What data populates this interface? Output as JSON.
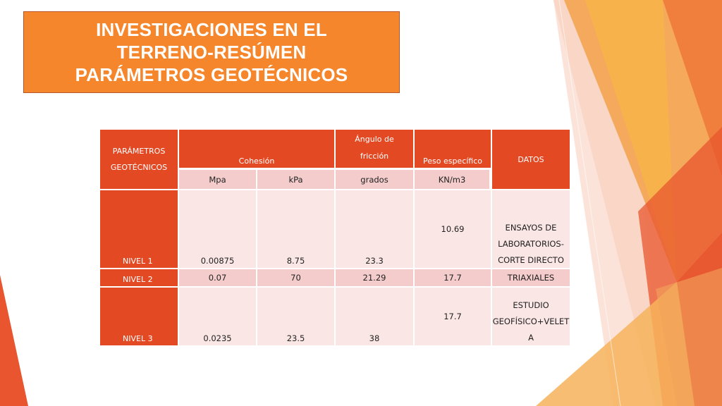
{
  "slide": {
    "title_lines": [
      "INVESTIGACIONES EN EL",
      "TERRENO-RESÚMEN",
      "PARÁMETROS GEOTÉCNICOS"
    ]
  },
  "table": {
    "header": {
      "parametros_l1": "PARÁMETROS",
      "parametros_l2": "GEOTÉCNICOS",
      "cohesion": "Cohesión",
      "angulo_l1": "Ángulo de",
      "angulo_l2": "fricción",
      "peso": "Peso específico",
      "datos": "DATOS"
    },
    "units": {
      "mpa": "Mpa",
      "kpa": "kPa",
      "grados": "grados",
      "kn": "KN/m3"
    },
    "rows": [
      {
        "label": "NIVEL 1",
        "mpa": "0.00875",
        "kpa": "8.75",
        "grados": "23.3",
        "peso": "10.69",
        "datos_lines": [
          "ENSAYOS DE",
          "LABORATORIOS-",
          "CORTE DIRECTO"
        ]
      },
      {
        "label": "NIVEL 2",
        "mpa": "0.07",
        "kpa": "70",
        "grados": "21.29",
        "peso": "17.7",
        "datos_lines": [
          "TRIAXIALES"
        ]
      },
      {
        "label": "NIVEL 3",
        "mpa": "0.0235",
        "kpa": "23.5",
        "grados": "38",
        "peso": "17.7",
        "datos_lines": [
          "ESTUDIO",
          "GEOFÍSICO+VELET",
          "A"
        ]
      }
    ]
  },
  "colors": {
    "title_bg": "#f5862b",
    "header_bg": "#e34a24",
    "row_light": "#fae6e4",
    "row_mid": "#f4cccc"
  }
}
